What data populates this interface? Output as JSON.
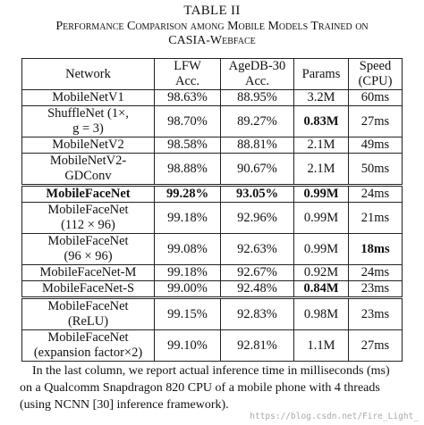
{
  "table_label": "TABLE II",
  "caption_line1": "Performance Comparison among Mobile Models Trained on",
  "caption_line2": "CASIA-Webface",
  "headers": [
    "Network",
    "LFW Acc.",
    "AgeDB-30 Acc.",
    "Params",
    "Speed (CPU)"
  ],
  "rows": [
    {
      "network": "MobileNetV1",
      "lfw": "98.63%",
      "agedb": "88.95%",
      "params": "3.2M",
      "speed": "60ms",
      "bold": []
    },
    {
      "network": "ShuffleNet (1×, g = 3)",
      "lfw": "98.70%",
      "agedb": "89.27%",
      "params": "0.83M",
      "speed": "27ms",
      "bold": [
        "params"
      ]
    },
    {
      "network": "MobileNetV2",
      "lfw": "98.58%",
      "agedb": "88.81%",
      "params": "2.1M",
      "speed": "49ms",
      "bold": []
    },
    {
      "network": "MobileNetV2-GDConv",
      "lfw": "98.88%",
      "agedb": "90.67%",
      "params": "2.1M",
      "speed": "50ms",
      "bold": []
    },
    {
      "network": "MobileFaceNet",
      "lfw": "99.28%",
      "agedb": "93.05%",
      "params": "0.99M",
      "speed": "24ms",
      "bold": [
        "network",
        "lfw",
        "agedb",
        "params"
      ]
    },
    {
      "network": "MobileFaceNet (112 × 96)",
      "lfw": "99.18%",
      "agedb": "92.96%",
      "params": "0.99M",
      "speed": "21ms",
      "bold": []
    },
    {
      "network": "MobileFaceNet (96 × 96)",
      "lfw": "99.08%",
      "agedb": "92.63%",
      "params": "0.99M",
      "speed": "18ms",
      "bold": [
        "speed"
      ]
    },
    {
      "network": "MobileFaceNet-M",
      "lfw": "99.18%",
      "agedb": "92.67%",
      "params": "0.92M",
      "speed": "24ms",
      "bold": []
    },
    {
      "network": "MobileFaceNet-S",
      "lfw": "99.00%",
      "agedb": "92.48%",
      "params": "0.84M",
      "speed": "23ms",
      "bold": [
        "params"
      ]
    },
    {
      "network": "MobileFaceNet (ReLU)",
      "lfw": "99.15%",
      "agedb": "92.83%",
      "params": "0.98M",
      "speed": "23ms",
      "bold": []
    },
    {
      "network": "MobileFaceNet (expansion factor×2)",
      "lfw": "99.10%",
      "agedb": "92.81%",
      "params": "1.1M",
      "speed": "27ms",
      "bold": []
    }
  ],
  "footnote_lines": [
    "In the last column, we report actual inference time in milliseconds (ms)",
    "on a Qualcomm Snapdragon 820 CPU of a mobile phone with 4 threads",
    "(using NCNN [30] inference framework)."
  ],
  "watermark": "https://blog.csdn.net/Fire_Light_"
}
